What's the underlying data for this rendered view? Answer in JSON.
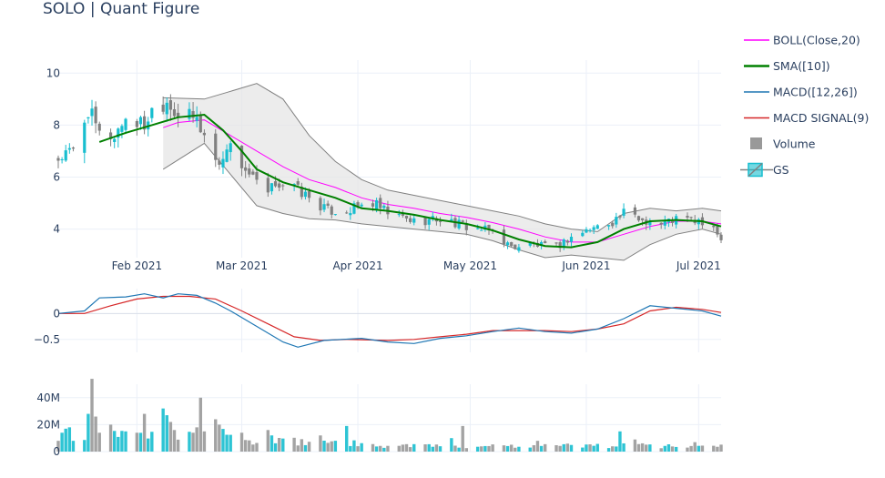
{
  "title": "SOLO | Quant Figure",
  "chart_data": {
    "type": "candlestick",
    "title": "SOLO | Quant Figure",
    "grid": true,
    "legend_placement": "right",
    "legend": [
      {
        "key": "boll",
        "label": "BOLL(Close,20)",
        "color": "#ff00ff",
        "symbol": "line"
      },
      {
        "key": "sma",
        "label": "SMA([10])",
        "color": "#008000",
        "symbol": "thick-line"
      },
      {
        "key": "macd",
        "label": "MACD([12,26])",
        "color": "#1f77b4",
        "symbol": "line"
      },
      {
        "key": "signal",
        "label": "MACD SIGNAL(9)",
        "color": "#d62728",
        "symbol": "line"
      },
      {
        "key": "volume",
        "label": "Volume",
        "color": "#999999",
        "symbol": "square"
      },
      {
        "key": "gs",
        "label": "GS",
        "color": "#17becf",
        "symbol": "candle"
      }
    ],
    "colors": {
      "increasing": "#17becf",
      "decreasing": "#808080",
      "band_fill": "#e5e5e5",
      "band_line": "#808080"
    },
    "x_axis": {
      "range": [
        "2021-01-11",
        "2021-07-07"
      ],
      "ticks": [
        {
          "date": "2021-02-01",
          "label": "Feb 2021"
        },
        {
          "date": "2021-03-01",
          "label": "Mar 2021"
        },
        {
          "date": "2021-04-01",
          "label": "Apr 2021"
        },
        {
          "date": "2021-05-01",
          "label": "May 2021"
        },
        {
          "date": "2021-06-01",
          "label": "Jun 2021"
        },
        {
          "date": "2021-07-01",
          "label": "Jul 2021"
        }
      ]
    },
    "price_panel": {
      "ylim": [
        2.9,
        10.5
      ],
      "yticks": [
        {
          "value": 4,
          "label": "4"
        },
        {
          "value": 6,
          "label": "6"
        },
        {
          "value": 8,
          "label": "8"
        },
        {
          "value": 10,
          "label": "10"
        }
      ],
      "close_anchors": [
        [
          "2021-01-11",
          6.7
        ],
        [
          "2021-01-15",
          7.0
        ],
        [
          "2021-01-19",
          8.6
        ],
        [
          "2021-01-22",
          7.6
        ],
        [
          "2021-01-26",
          7.6
        ],
        [
          "2021-01-29",
          8.3
        ],
        [
          "2021-02-03",
          8.0
        ],
        [
          "2021-02-05",
          8.6
        ],
        [
          "2021-02-09",
          9.0
        ],
        [
          "2021-02-12",
          8.4
        ],
        [
          "2021-02-17",
          8.2
        ],
        [
          "2021-02-19",
          7.6
        ],
        [
          "2021-02-23",
          6.4
        ],
        [
          "2021-02-25",
          7.3
        ],
        [
          "2021-03-01",
          6.5
        ],
        [
          "2021-03-04",
          5.9
        ],
        [
          "2021-03-08",
          5.3
        ],
        [
          "2021-03-10",
          5.8
        ],
        [
          "2021-03-15",
          5.6
        ],
        [
          "2021-03-19",
          5.2
        ],
        [
          "2021-03-24",
          4.7
        ],
        [
          "2021-03-29",
          4.7
        ],
        [
          "2021-04-05",
          5.0
        ],
        [
          "2021-04-09",
          4.6
        ],
        [
          "2021-04-16",
          4.3
        ],
        [
          "2021-04-23",
          4.4
        ],
        [
          "2021-04-30",
          4.1
        ],
        [
          "2021-05-07",
          3.9
        ],
        [
          "2021-05-12",
          3.3
        ],
        [
          "2021-05-17",
          3.4
        ],
        [
          "2021-05-24",
          3.3
        ],
        [
          "2021-05-28",
          3.7
        ],
        [
          "2021-06-02",
          4.0
        ],
        [
          "2021-06-08",
          4.3
        ],
        [
          "2021-06-11",
          4.6
        ],
        [
          "2021-06-15",
          4.4
        ],
        [
          "2021-06-21",
          4.2
        ],
        [
          "2021-06-25",
          4.4
        ],
        [
          "2021-07-01",
          4.3
        ],
        [
          "2021-07-07",
          3.7
        ]
      ],
      "boll_mid": [
        [
          "2021-02-08",
          7.9
        ],
        [
          "2021-02-12",
          8.1
        ],
        [
          "2021-02-19",
          8.2
        ],
        [
          "2021-02-26",
          7.6
        ],
        [
          "2021-03-05",
          7.0
        ],
        [
          "2021-03-12",
          6.4
        ],
        [
          "2021-03-19",
          5.9
        ],
        [
          "2021-03-26",
          5.6
        ],
        [
          "2021-04-02",
          5.2
        ],
        [
          "2021-04-09",
          4.95
        ],
        [
          "2021-04-16",
          4.8
        ],
        [
          "2021-04-23",
          4.6
        ],
        [
          "2021-04-30",
          4.45
        ],
        [
          "2021-05-07",
          4.25
        ],
        [
          "2021-05-14",
          4.0
        ],
        [
          "2021-05-21",
          3.7
        ],
        [
          "2021-05-28",
          3.5
        ],
        [
          "2021-06-04",
          3.5
        ],
        [
          "2021-06-11",
          3.8
        ],
        [
          "2021-06-18",
          4.1
        ],
        [
          "2021-06-25",
          4.3
        ],
        [
          "2021-07-02",
          4.3
        ],
        [
          "2021-07-07",
          4.2
        ]
      ],
      "boll_upper": [
        [
          "2021-02-08",
          9.05
        ],
        [
          "2021-02-19",
          9.0
        ],
        [
          "2021-02-26",
          9.3
        ],
        [
          "2021-03-05",
          9.6
        ],
        [
          "2021-03-12",
          9.0
        ],
        [
          "2021-03-19",
          7.6
        ],
        [
          "2021-03-26",
          6.6
        ],
        [
          "2021-04-02",
          5.9
        ],
        [
          "2021-04-09",
          5.5
        ],
        [
          "2021-04-16",
          5.3
        ],
        [
          "2021-04-23",
          5.1
        ],
        [
          "2021-04-30",
          4.9
        ],
        [
          "2021-05-07",
          4.7
        ],
        [
          "2021-05-14",
          4.5
        ],
        [
          "2021-05-21",
          4.2
        ],
        [
          "2021-05-28",
          4.0
        ],
        [
          "2021-06-04",
          3.9
        ],
        [
          "2021-06-11",
          4.6
        ],
        [
          "2021-06-18",
          4.8
        ],
        [
          "2021-06-25",
          4.7
        ],
        [
          "2021-07-02",
          4.8
        ],
        [
          "2021-07-07",
          4.7
        ]
      ],
      "boll_lower": [
        [
          "2021-02-08",
          6.3
        ],
        [
          "2021-02-19",
          7.3
        ],
        [
          "2021-02-26",
          6.1
        ],
        [
          "2021-03-05",
          4.9
        ],
        [
          "2021-03-12",
          4.6
        ],
        [
          "2021-03-19",
          4.4
        ],
        [
          "2021-03-26",
          4.35
        ],
        [
          "2021-04-02",
          4.2
        ],
        [
          "2021-04-09",
          4.1
        ],
        [
          "2021-04-16",
          4.0
        ],
        [
          "2021-04-23",
          3.9
        ],
        [
          "2021-04-30",
          3.8
        ],
        [
          "2021-05-07",
          3.55
        ],
        [
          "2021-05-14",
          3.2
        ],
        [
          "2021-05-21",
          2.9
        ],
        [
          "2021-05-28",
          3.0
        ],
        [
          "2021-06-04",
          2.9
        ],
        [
          "2021-06-11",
          2.8
        ],
        [
          "2021-06-18",
          3.4
        ],
        [
          "2021-06-25",
          3.8
        ],
        [
          "2021-07-02",
          4.0
        ],
        [
          "2021-07-07",
          3.8
        ]
      ],
      "sma": [
        [
          "2021-01-22",
          7.35
        ],
        [
          "2021-01-29",
          7.7
        ],
        [
          "2021-02-05",
          8.0
        ],
        [
          "2021-02-12",
          8.3
        ],
        [
          "2021-02-19",
          8.4
        ],
        [
          "2021-02-24",
          7.8
        ],
        [
          "2021-03-01",
          7.0
        ],
        [
          "2021-03-05",
          6.3
        ],
        [
          "2021-03-12",
          5.8
        ],
        [
          "2021-03-19",
          5.5
        ],
        [
          "2021-03-26",
          5.2
        ],
        [
          "2021-04-02",
          4.8
        ],
        [
          "2021-04-09",
          4.7
        ],
        [
          "2021-04-16",
          4.55
        ],
        [
          "2021-04-23",
          4.35
        ],
        [
          "2021-04-30",
          4.2
        ],
        [
          "2021-05-07",
          3.95
        ],
        [
          "2021-05-14",
          3.6
        ],
        [
          "2021-05-21",
          3.35
        ],
        [
          "2021-05-28",
          3.3
        ],
        [
          "2021-06-04",
          3.5
        ],
        [
          "2021-06-11",
          4.0
        ],
        [
          "2021-06-18",
          4.3
        ],
        [
          "2021-06-25",
          4.35
        ],
        [
          "2021-07-02",
          4.3
        ],
        [
          "2021-07-07",
          4.1
        ]
      ]
    },
    "macd_panel": {
      "ylim": [
        -0.75,
        0.48
      ],
      "yticks": [
        {
          "value": 0,
          "label": "0"
        },
        {
          "value": -0.5,
          "label": "−0.5"
        }
      ],
      "macd": [
        [
          "2021-01-11",
          0.0
        ],
        [
          "2021-01-18",
          0.05
        ],
        [
          "2021-01-22",
          0.3
        ],
        [
          "2021-01-29",
          0.32
        ],
        [
          "2021-02-03",
          0.38
        ],
        [
          "2021-02-08",
          0.3
        ],
        [
          "2021-02-12",
          0.38
        ],
        [
          "2021-02-17",
          0.35
        ],
        [
          "2021-02-22",
          0.2
        ],
        [
          "2021-02-26",
          0.05
        ],
        [
          "2021-03-05",
          -0.25
        ],
        [
          "2021-03-12",
          -0.55
        ],
        [
          "2021-03-16",
          -0.65
        ],
        [
          "2021-03-23",
          -0.52
        ],
        [
          "2021-04-02",
          -0.48
        ],
        [
          "2021-04-09",
          -0.55
        ],
        [
          "2021-04-16",
          -0.58
        ],
        [
          "2021-04-23",
          -0.48
        ],
        [
          "2021-04-30",
          -0.43
        ],
        [
          "2021-05-07",
          -0.35
        ],
        [
          "2021-05-14",
          -0.28
        ],
        [
          "2021-05-21",
          -0.35
        ],
        [
          "2021-05-28",
          -0.38
        ],
        [
          "2021-06-04",
          -0.3
        ],
        [
          "2021-06-11",
          -0.1
        ],
        [
          "2021-06-18",
          0.15
        ],
        [
          "2021-06-25",
          0.1
        ],
        [
          "2021-07-02",
          0.05
        ],
        [
          "2021-07-07",
          -0.05
        ]
      ],
      "signal": [
        [
          "2021-01-11",
          0.0
        ],
        [
          "2021-01-18",
          0.0
        ],
        [
          "2021-01-25",
          0.15
        ],
        [
          "2021-02-01",
          0.28
        ],
        [
          "2021-02-08",
          0.33
        ],
        [
          "2021-02-15",
          0.33
        ],
        [
          "2021-02-22",
          0.28
        ],
        [
          "2021-03-01",
          0.05
        ],
        [
          "2021-03-08",
          -0.2
        ],
        [
          "2021-03-15",
          -0.45
        ],
        [
          "2021-03-22",
          -0.52
        ],
        [
          "2021-03-29",
          -0.5
        ],
        [
          "2021-04-09",
          -0.52
        ],
        [
          "2021-04-16",
          -0.5
        ],
        [
          "2021-04-23",
          -0.45
        ],
        [
          "2021-04-30",
          -0.4
        ],
        [
          "2021-05-07",
          -0.33
        ],
        [
          "2021-05-14",
          -0.33
        ],
        [
          "2021-05-21",
          -0.33
        ],
        [
          "2021-05-28",
          -0.35
        ],
        [
          "2021-06-04",
          -0.3
        ],
        [
          "2021-06-11",
          -0.2
        ],
        [
          "2021-06-18",
          0.05
        ],
        [
          "2021-06-25",
          0.12
        ],
        [
          "2021-07-02",
          0.08
        ],
        [
          "2021-07-07",
          0.02
        ]
      ]
    },
    "volume_panel": {
      "ylim": [
        0,
        50000000
      ],
      "yticks": [
        {
          "value": 0,
          "label": "0"
        },
        {
          "value": 20000000,
          "label": "20M"
        },
        {
          "value": 40000000,
          "label": "40M"
        }
      ],
      "spikes": [
        [
          "2021-01-11",
          8000000
        ],
        [
          "2021-01-12",
          14000000
        ],
        [
          "2021-01-13",
          17000000
        ],
        [
          "2021-01-14",
          18000000
        ],
        [
          "2021-01-19",
          28000000
        ],
        [
          "2021-01-20",
          54000000
        ],
        [
          "2021-01-21",
          26000000
        ],
        [
          "2021-01-22",
          14000000
        ],
        [
          "2021-01-25",
          20000000
        ],
        [
          "2021-01-29",
          15000000
        ],
        [
          "2021-02-01",
          14000000
        ],
        [
          "2021-02-03",
          28000000
        ],
        [
          "2021-02-08",
          32000000
        ],
        [
          "2021-02-09",
          27000000
        ],
        [
          "2021-02-10",
          22000000
        ],
        [
          "2021-02-11",
          16000000
        ],
        [
          "2021-02-16",
          14000000
        ],
        [
          "2021-02-17",
          18000000
        ],
        [
          "2021-02-18",
          40000000
        ],
        [
          "2021-02-19",
          15000000
        ],
        [
          "2021-02-22",
          24000000
        ],
        [
          "2021-02-23",
          20000000
        ],
        [
          "2021-03-01",
          14000000
        ],
        [
          "2021-03-08",
          16000000
        ],
        [
          "2021-03-09",
          12000000
        ],
        [
          "2021-03-22",
          12000000
        ],
        [
          "2021-03-29",
          19000000
        ],
        [
          "2021-04-26",
          10000000
        ],
        [
          "2021-04-29",
          19000000
        ],
        [
          "2021-05-19",
          8000000
        ],
        [
          "2021-06-10",
          15000000
        ],
        [
          "2021-06-14",
          9000000
        ],
        [
          "2021-06-30",
          7000000
        ]
      ]
    }
  }
}
